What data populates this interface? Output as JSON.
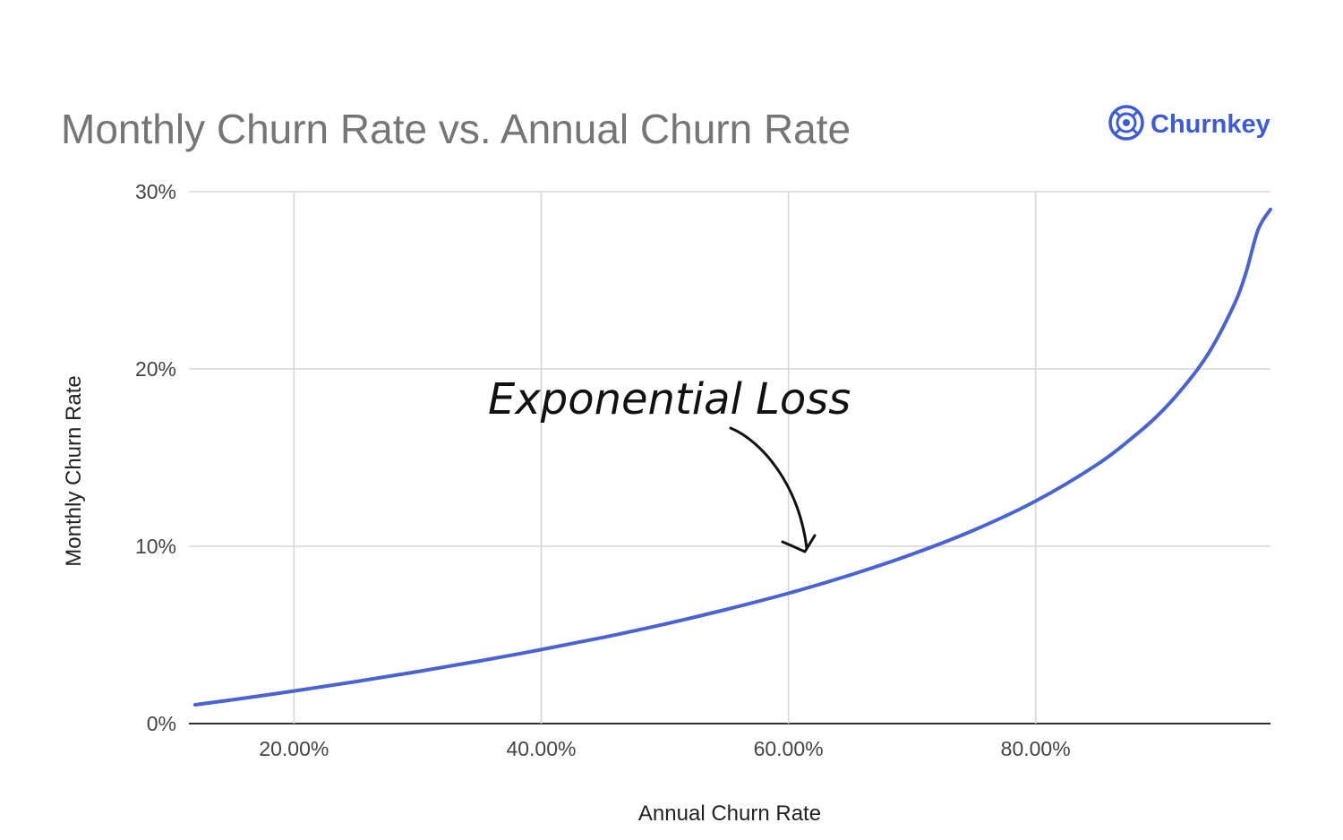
{
  "brand": {
    "name": "Churnkey",
    "color": "#3d5bd9",
    "icon": "churnkey-logo-icon"
  },
  "chart_data": {
    "type": "line",
    "title": "Monthly Churn Rate vs. Annual Churn Rate",
    "xlabel": "Annual Churn Rate",
    "ylabel": "Monthly Churn Rate",
    "xlim": [
      0.115,
      0.99
    ],
    "ylim": [
      0,
      0.3
    ],
    "x_ticks": [
      0.2,
      0.4,
      0.6,
      0.8
    ],
    "x_tick_labels": [
      "20.00%",
      "40.00%",
      "60.00%",
      "80.00%"
    ],
    "y_ticks": [
      0,
      0.1,
      0.2,
      0.3
    ],
    "y_tick_labels": [
      "0%",
      "10%",
      "20%",
      "30%"
    ],
    "grid": true,
    "line_color": "#4a63d3",
    "series": [
      {
        "x": [
          0.12,
          0.15,
          0.2,
          0.25,
          0.3,
          0.35,
          0.4,
          0.45,
          0.5,
          0.55,
          0.6,
          0.65,
          0.7,
          0.75,
          0.8,
          0.85,
          0.88,
          0.9,
          0.92,
          0.94,
          0.96,
          0.97,
          0.98,
          0.99
        ],
        "y": [
          0.0106,
          0.0134,
          0.0184,
          0.0237,
          0.0293,
          0.0353,
          0.0417,
          0.0486,
          0.0561,
          0.0644,
          0.0735,
          0.0838,
          0.0955,
          0.1091,
          0.1255,
          0.1462,
          0.1622,
          0.1746,
          0.1901,
          0.209,
          0.2354,
          0.2539,
          0.2786,
          0.29
        ]
      }
    ],
    "annotations": [
      {
        "text": "Exponential Loss",
        "x": 0.62,
        "y": 0.0735
      }
    ]
  }
}
